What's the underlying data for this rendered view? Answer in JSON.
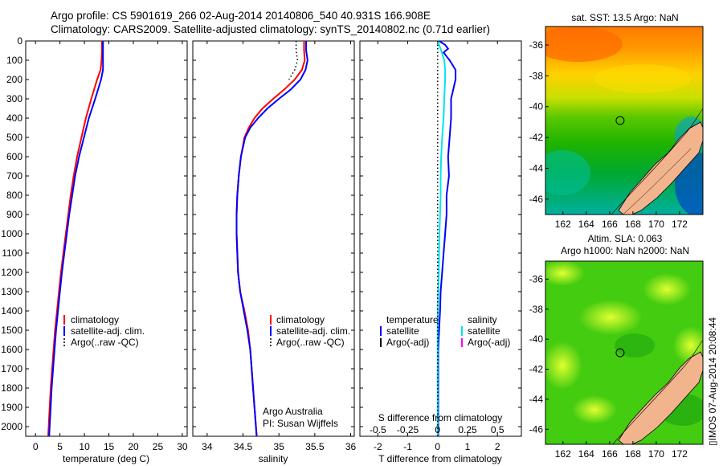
{
  "titles": {
    "line1": "Argo profile: CS 5901619_266 02-Aug-2014 20140806_540 40.931S 166.908E",
    "line2": "Climatology: CARS2009. Satellite-adjusted climatology: synTS_20140802.nc (0.71d earlier)"
  },
  "stamp": "▯IMOS 07-Aug-2014 20:08:44",
  "colors": {
    "climatology": "#ff0000",
    "satellite": "#0000ff",
    "argo": "#000000",
    "salinity_satellite": "#00e5ee",
    "salinity_argo": "#ff00ff"
  },
  "chart_data": [
    {
      "type": "line",
      "name": "temperature-profile",
      "xlabel": "temperature (deg C)",
      "xlim": [
        -2,
        31
      ],
      "ylim": [
        0,
        2050
      ],
      "y_inverted": true,
      "xticks": [
        "0",
        "5",
        "10",
        "15",
        "20",
        "25",
        "30"
      ],
      "xtick_values": [
        0,
        5,
        10,
        15,
        20,
        25,
        30
      ],
      "yticks": [
        "0",
        "100",
        "200",
        "300",
        "400",
        "500",
        "600",
        "700",
        "800",
        "900",
        "1000",
        "1100",
        "1200",
        "1300",
        "1400",
        "1500",
        "1600",
        "1700",
        "1800",
        "1900",
        "2000"
      ],
      "ytick_values": [
        0,
        100,
        200,
        300,
        400,
        500,
        600,
        700,
        800,
        900,
        1000,
        1100,
        1200,
        1300,
        1400,
        1500,
        1600,
        1700,
        1800,
        1900,
        2000
      ],
      "legend": [
        "climatology",
        "satellite-adj. clim.",
        "Argo(..raw -QC)"
      ],
      "legend_position": "lower-right",
      "series": [
        {
          "name": "climatology",
          "color": "#ff0000",
          "depth": [
            0,
            50,
            100,
            150,
            200,
            300,
            400,
            500,
            600,
            700,
            800,
            900,
            1000,
            1100,
            1200,
            1300,
            1400,
            1500,
            1600,
            1700,
            1800,
            1900,
            2000,
            2050
          ],
          "values": [
            13.6,
            13.6,
            13.5,
            13.3,
            12.6,
            11.4,
            10.3,
            9.4,
            8.5,
            7.8,
            7.2,
            6.7,
            6.2,
            5.7,
            5.2,
            4.8,
            4.4,
            4.0,
            3.7,
            3.4,
            3.1,
            2.9,
            2.7,
            2.6
          ]
        },
        {
          "name": "satellite-adj. clim.",
          "color": "#0000ff",
          "depth": [
            0,
            50,
            100,
            150,
            200,
            300,
            400,
            500,
            600,
            700,
            800,
            900,
            1000,
            1100,
            1200,
            1300,
            1400,
            1500,
            1600,
            1700,
            1800,
            1900,
            2000,
            2050
          ],
          "values": [
            13.8,
            13.8,
            13.8,
            13.8,
            13.4,
            12.2,
            10.9,
            9.9,
            8.9,
            8.1,
            7.5,
            6.9,
            6.4,
            5.9,
            5.4,
            5.0,
            4.6,
            4.2,
            3.9,
            3.6,
            3.3,
            3.1,
            2.9,
            2.8
          ]
        }
      ]
    },
    {
      "type": "line",
      "name": "salinity-profile",
      "xlabel": "salinity",
      "xlim": [
        33.8,
        36.05
      ],
      "ylim": [
        0,
        2050
      ],
      "y_inverted": true,
      "xticks": [
        "34",
        "34.5",
        "35",
        "35.5",
        "36"
      ],
      "xtick_values": [
        34,
        34.5,
        35,
        35.5,
        36
      ],
      "legend": [
        "climatology",
        "satellite-adj. clim.",
        "Argo(..raw -QC)"
      ],
      "legend_position": "lower-right",
      "annotations": [
        "Argo Australia",
        "PI: Susan Wijffels"
      ],
      "series": [
        {
          "name": "climatology",
          "color": "#ff0000",
          "depth": [
            0,
            50,
            100,
            150,
            200,
            250,
            300,
            350,
            400,
            450,
            500,
            600,
            700,
            800,
            900,
            1000,
            1100,
            1200,
            1300,
            1400,
            1500,
            1600,
            1700,
            1800,
            1900,
            2000,
            2050
          ],
          "values": [
            35.35,
            35.35,
            35.36,
            35.32,
            35.22,
            35.08,
            34.92,
            34.77,
            34.66,
            34.58,
            34.52,
            34.47,
            34.44,
            34.42,
            34.41,
            34.41,
            34.42,
            34.43,
            34.46,
            34.52,
            34.57,
            34.6,
            34.62,
            34.64,
            34.66,
            34.68,
            34.69
          ]
        },
        {
          "name": "satellite-adj. clim.",
          "color": "#0000ff",
          "depth": [
            0,
            50,
            100,
            150,
            200,
            250,
            300,
            350,
            400,
            450,
            500,
            600,
            700,
            800,
            900,
            1000,
            1100,
            1200,
            1300,
            1400,
            1500,
            1600,
            1700,
            1800,
            1900,
            2000,
            2050
          ],
          "values": [
            35.38,
            35.38,
            35.4,
            35.37,
            35.3,
            35.17,
            35.0,
            34.84,
            34.71,
            34.6,
            34.53,
            34.47,
            34.44,
            34.42,
            34.41,
            34.41,
            34.42,
            34.43,
            34.46,
            34.51,
            34.56,
            34.6,
            34.62,
            34.64,
            34.66,
            34.68,
            34.69
          ]
        },
        {
          "name": "Argo(..raw -QC)",
          "color": "#000000",
          "style": "dotted",
          "depth": [
            0,
            50,
            100,
            150,
            200
          ],
          "values": [
            35.24,
            35.24,
            35.26,
            35.22,
            35.14
          ]
        }
      ]
    },
    {
      "type": "line",
      "name": "difference-profile",
      "xlabel": "T difference from climatology",
      "xlabel_top": "S difference from climatology",
      "xlim": [
        -2.6,
        2.8
      ],
      "ylim": [
        0,
        2050
      ],
      "y_inverted": true,
      "xticks": [
        "-2",
        "-1",
        "0",
        "1",
        "2"
      ],
      "xtick_values": [
        -2,
        -1,
        0,
        1,
        2
      ],
      "s_ticks": [
        "-0.5",
        "-0.25",
        "0",
        "0.25",
        "0.5"
      ],
      "legend_headers": [
        "temperature",
        "salinity"
      ],
      "legend": [
        "satellite",
        "Argo(-adj)",
        "satellite",
        "Argo(-adj)"
      ],
      "series": [
        {
          "name": "temperature satellite",
          "color": "#0000ff",
          "depth": [
            0,
            20,
            40,
            60,
            80,
            100,
            150,
            200,
            300,
            400,
            500,
            600,
            700,
            800,
            900,
            1000,
            1100,
            1200,
            1300,
            1400,
            1500,
            1600,
            1700,
            1800,
            1900,
            2000,
            2050
          ],
          "values": [
            0.05,
            0.25,
            0.35,
            0.2,
            0.3,
            0.4,
            0.6,
            0.6,
            0.45,
            0.45,
            0.4,
            0.35,
            0.38,
            0.3,
            0.3,
            0.25,
            0.2,
            0.15,
            0.1,
            0.08,
            0.05,
            0.02,
            0.02,
            0.02,
            0.02,
            0.02,
            0.02
          ]
        },
        {
          "name": "salinity satellite",
          "color": "#00e5ee",
          "depth": [
            0,
            50,
            100,
            150,
            200,
            300,
            400,
            500,
            600,
            700,
            800,
            900,
            1000,
            1100,
            1200,
            1300,
            1400,
            1500,
            1600,
            1700,
            1800,
            1900,
            2000,
            2050
          ],
          "values": [
            0.0,
            0.12,
            0.22,
            0.25,
            0.25,
            0.22,
            0.2,
            0.15,
            0.12,
            0.1,
            0.1,
            0.08,
            0.06,
            0.05,
            0.04,
            0.02,
            0.01,
            0.0,
            0.0,
            0.0,
            0.0,
            0.0,
            0.0,
            0.0
          ]
        },
        {
          "name": "zero reference",
          "color": "#000000",
          "style": "dotted",
          "depth": [
            0,
            2050
          ],
          "values": [
            0,
            0
          ]
        }
      ]
    }
  ],
  "maps": [
    {
      "name": "sst-map",
      "title": "sat. SST: 13.5  Argo: NaN",
      "xticks": [
        "162",
        "164",
        "166",
        "168",
        "170",
        "172"
      ],
      "yticks": [
        "-36",
        "-38",
        "-40",
        "-42",
        "-44",
        "-46"
      ],
      "marker": {
        "lon": 166.9,
        "lat": -40.9
      }
    },
    {
      "name": "sla-map",
      "title_line1": "Altim. SLA: 0.063",
      "title_line2": "Argo h1000: NaN h2000: NaN",
      "xticks": [
        "162",
        "164",
        "166",
        "168",
        "170",
        "172"
      ],
      "yticks": [
        "-36",
        "-38",
        "-40",
        "-42",
        "-44",
        "-46"
      ],
      "marker": {
        "lon": 166.9,
        "lat": -40.9
      }
    }
  ]
}
